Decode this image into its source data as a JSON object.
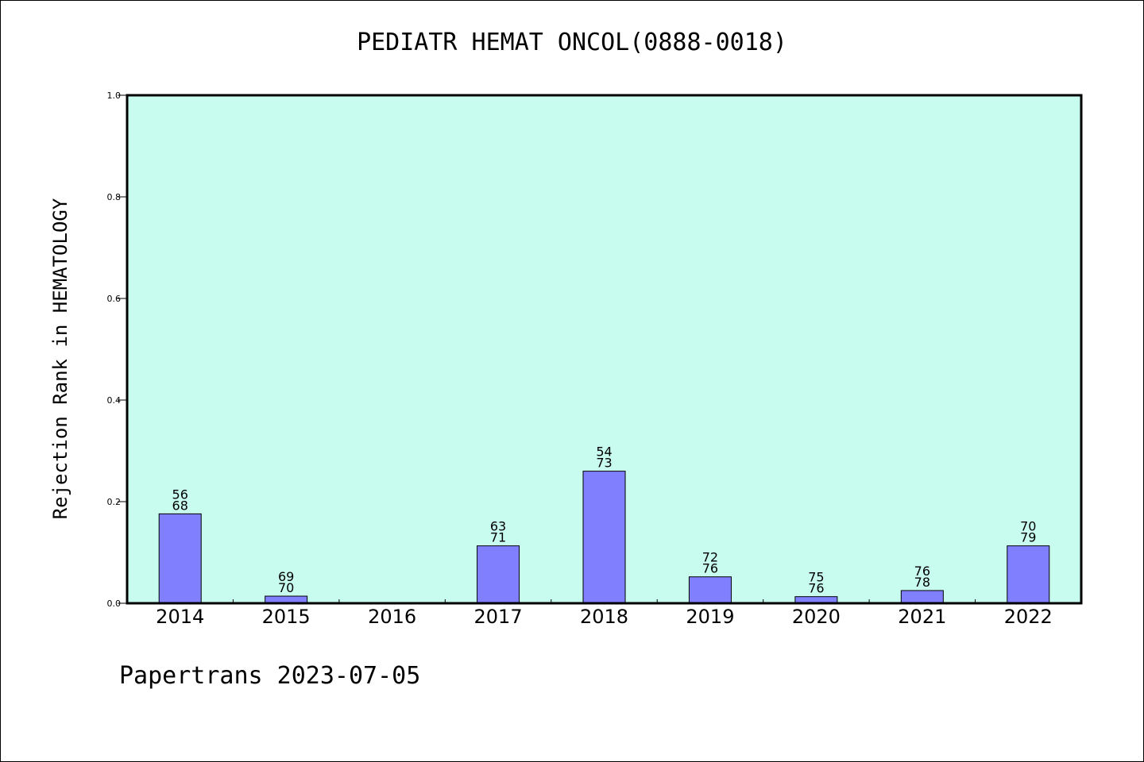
{
  "chart_data": {
    "type": "bar",
    "title": "PEDIATR HEMAT ONCOL(0888-0018)",
    "xlabel": "",
    "ylabel": "Rejection Rank in HEMATOLOGY",
    "ylim": [
      0,
      1.0
    ],
    "yticks": [
      "0.0",
      "0.2",
      "0.4",
      "0.6",
      "0.8",
      "1.0"
    ],
    "grid": false,
    "categories": [
      "2014",
      "2015",
      "2016",
      "2017",
      "2018",
      "2019",
      "2020",
      "2021",
      "2022"
    ],
    "values": [
      0.176,
      0.014,
      0,
      0.113,
      0.26,
      0.052,
      0.013,
      0.025,
      0.113
    ],
    "labels_top": [
      "56",
      "69",
      "",
      "63",
      "54",
      "72",
      "75",
      "76",
      "70"
    ],
    "labels_bottom": [
      "68",
      "70",
      "",
      "71",
      "73",
      "76",
      "76",
      "78",
      "79"
    ],
    "colors": {
      "plot_bg": "#c8fcee",
      "bar": "#8080ff",
      "bar_edge": "#000000"
    }
  },
  "footer": "Papertrans 2023-07-05"
}
